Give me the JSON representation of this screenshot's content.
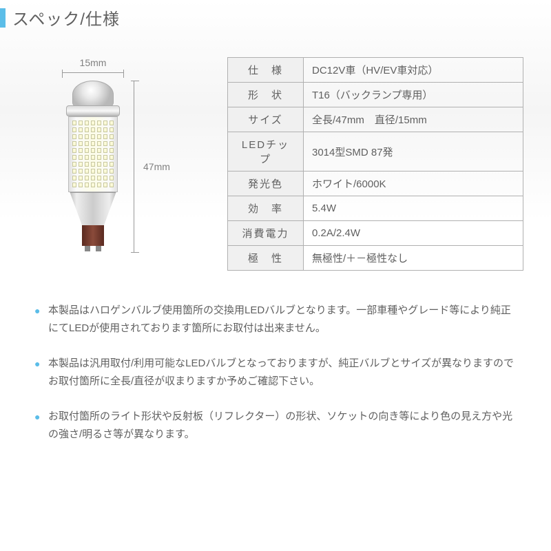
{
  "header": {
    "title": "スペック/仕様",
    "accent_color": "#5bbde8"
  },
  "dimensions": {
    "width": "15mm",
    "height": "47mm"
  },
  "spec_table": {
    "rows": [
      {
        "label": "仕　様",
        "value": "DC12V車（HV/EV車対応）"
      },
      {
        "label": "形　状",
        "value": "T16（バックランプ専用）"
      },
      {
        "label": "サイズ",
        "value": "全長/47mm　直径/15mm"
      },
      {
        "label": "LEDチップ",
        "value": "3014型SMD 87発"
      },
      {
        "label": "発光色",
        "value": "ホワイト/6000K"
      },
      {
        "label": "効　率",
        "value": "5.4W"
      },
      {
        "label": "消費電力",
        "value": "0.2A/2.4W"
      },
      {
        "label": "極　性",
        "value": "無極性/＋－極性なし"
      }
    ],
    "border_color": "#b0b0b0",
    "label_bg": "#f0f0f0"
  },
  "notes": [
    "本製品はハロゲンバルブ使用箇所の交換用LEDバルブとなります。一部車種やグレード等により純正にてLEDが使用されております箇所にお取付は出来ません。",
    "本製品は汎用取付/利用可能なLEDバルブとなっておりますが、純正バルブとサイズが異なりますのでお取付箇所に全長/直径が収まりますか予めご確認下さい。",
    "お取付箇所のライト形状や反射板（リフレクター）の形状、ソケットの向き等により色の見え方や光の強さ/明るさ等が異なります。"
  ],
  "bullet_color": "#5bbde8"
}
